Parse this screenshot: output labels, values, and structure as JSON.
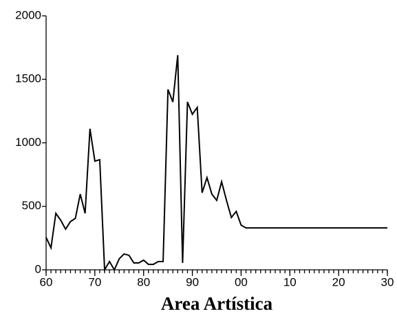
{
  "chart_data": {
    "type": "line",
    "x_label": "Area Artística",
    "x": [
      1960,
      1961,
      1962,
      1963,
      1964,
      1965,
      1966,
      1967,
      1968,
      1969,
      1970,
      1971,
      1972,
      1973,
      1974,
      1975,
      1976,
      1977,
      1978,
      1979,
      1980,
      1981,
      1982,
      1983,
      1984,
      1985,
      1986,
      1987,
      1988,
      1989,
      1990,
      1991,
      1992,
      1993,
      1994,
      1995,
      1996,
      1997,
      1998,
      1999,
      2000,
      2001,
      2002,
      2003,
      2004,
      2005,
      2006,
      2007,
      2008,
      2009,
      2010,
      2011,
      2012,
      2013,
      2014,
      2015,
      2016,
      2017,
      2018,
      2019,
      2020,
      2021,
      2022,
      2023,
      2024,
      2025,
      2026,
      2027,
      2028,
      2029,
      2030
    ],
    "values": [
      255,
      173,
      445,
      390,
      320,
      380,
      405,
      596,
      445,
      1111,
      856,
      867,
      0,
      65,
      0,
      87,
      125,
      114,
      54,
      54,
      76,
      43,
      43,
      65,
      65,
      1420,
      1322,
      1690,
      54,
      1322,
      1225,
      1279,
      607,
      726,
      596,
      547,
      694,
      547,
      412,
      460,
      352,
      330,
      330,
      330,
      330,
      330,
      330,
      330,
      330,
      330,
      330,
      330,
      330,
      330,
      330,
      330,
      330,
      330,
      330,
      330,
      330,
      330,
      330,
      330,
      330,
      330,
      330,
      330,
      330,
      330,
      330
    ],
    "color": "#000000",
    "xlim": [
      1960,
      2030
    ],
    "xticks": [
      {
        "value": 1960,
        "label": "60"
      },
      {
        "value": 1970,
        "label": "70"
      },
      {
        "value": 1980,
        "label": "80"
      },
      {
        "value": 1990,
        "label": "90"
      },
      {
        "value": 2000,
        "label": "00"
      },
      {
        "value": 2010,
        "label": "10"
      },
      {
        "value": 2020,
        "label": "20"
      },
      {
        "value": 2030,
        "label": "30"
      }
    ],
    "ylim": [
      0,
      2000
    ],
    "yticks": [
      0,
      500,
      1000,
      1500,
      2000
    ]
  }
}
